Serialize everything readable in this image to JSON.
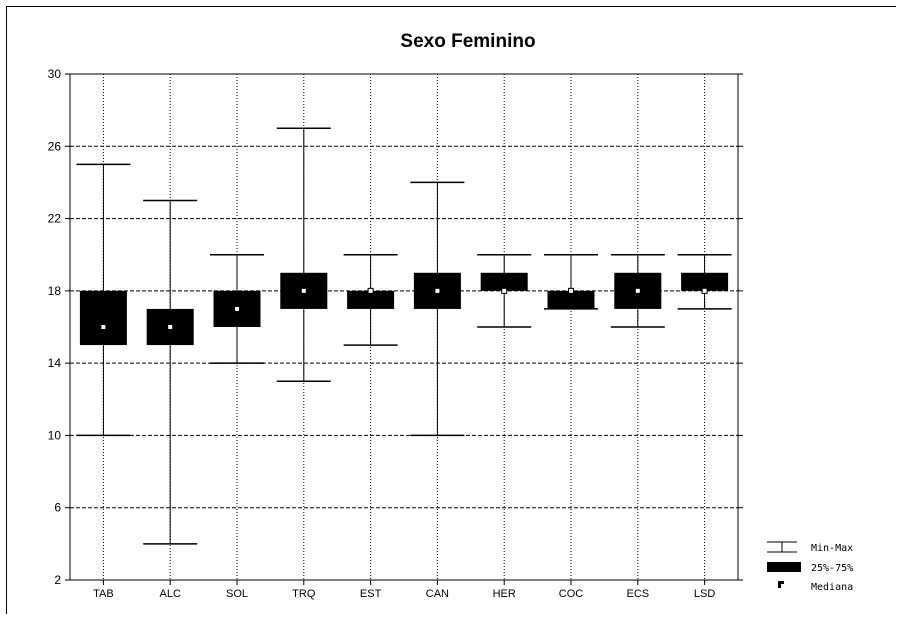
{
  "chart_data": {
    "type": "box",
    "title": "Sexo Feminino",
    "xlabel": "",
    "ylabel": "",
    "ylim": [
      2,
      30
    ],
    "yticks": [
      2,
      6,
      10,
      14,
      18,
      22,
      26,
      30
    ],
    "grid": "dashed horizontal and dotted vertical",
    "legend_position": "bottom-right",
    "legend": {
      "minmax": "Min-Max",
      "iqr": "25%-75%",
      "median": "Mediana"
    },
    "categories": [
      "TAB",
      "ALC",
      "SOL",
      "TRQ",
      "EST",
      "CAN",
      "HER",
      "COC",
      "ECS",
      "LSD"
    ],
    "series": [
      {
        "category": "TAB",
        "min": 10,
        "q1": 15,
        "median": 16,
        "q3": 18,
        "max": 25
      },
      {
        "category": "ALC",
        "min": 4,
        "q1": 15,
        "median": 16,
        "q3": 17,
        "max": 23
      },
      {
        "category": "SOL",
        "min": 14,
        "q1": 16,
        "median": 17,
        "q3": 18,
        "max": 20
      },
      {
        "category": "TRQ",
        "min": 13,
        "q1": 17,
        "median": 18,
        "q3": 19,
        "max": 27
      },
      {
        "category": "EST",
        "min": 15,
        "q1": 17,
        "median": 18,
        "q3": 18,
        "max": 20
      },
      {
        "category": "CAN",
        "min": 10,
        "q1": 17,
        "median": 18,
        "q3": 19,
        "max": 24
      },
      {
        "category": "HER",
        "min": 16,
        "q1": 18,
        "median": 18,
        "q3": 19,
        "max": 20
      },
      {
        "category": "COC",
        "min": 17,
        "q1": 17,
        "median": 18,
        "q3": 18,
        "max": 20
      },
      {
        "category": "ECS",
        "min": 16,
        "q1": 17,
        "median": 18,
        "q3": 19,
        "max": 20
      },
      {
        "category": "LSD",
        "min": 17,
        "q1": 18,
        "median": 18,
        "q3": 19,
        "max": 20
      }
    ],
    "colors": {
      "box": "#000000",
      "median": "#ffffff",
      "grid": "#000000",
      "background": "#ffffff"
    }
  }
}
